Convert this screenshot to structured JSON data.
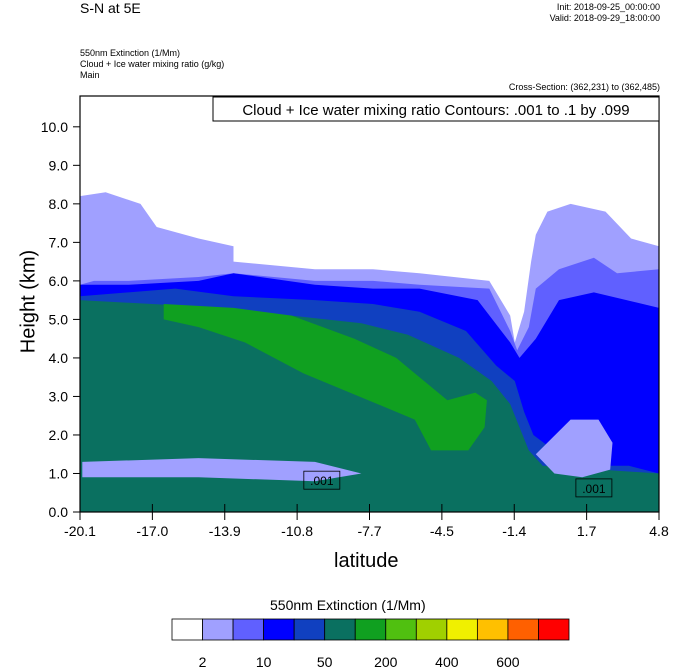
{
  "header": {
    "title": "S-N at 5E",
    "init": "Init: 2018-09-25_00:00:00",
    "valid": "Valid: 2018-09-29_18:00:00",
    "field1": "550nm Extinction   (1/Mm)",
    "field2": "Cloud + Ice water mixing ratio   (g/kg)",
    "field3": "Main",
    "cross_section": "Cross-Section: (362,231) to (362,485)"
  },
  "chart_data": {
    "type": "heatmap",
    "title": "Cloud + Ice water mixing ratio Contours: .001 to .1 by .099",
    "xlabel": "latitude",
    "ylabel": "Height (km)",
    "x_ticks": [
      "-20.1",
      "-17.0",
      "-13.9",
      "-10.8",
      "-7.7",
      "-4.5",
      "-1.4",
      "1.7",
      "4.8"
    ],
    "y_ticks": [
      "0.0",
      "1.0",
      "2.0",
      "3.0",
      "4.0",
      "5.0",
      "6.0",
      "7.0",
      "8.0",
      "9.0",
      "10.0"
    ],
    "xlim": [
      -20.1,
      4.8
    ],
    "ylim": [
      0,
      10.8
    ],
    "contour_labels": [
      {
        "text": ".001",
        "lat": -9.7,
        "height": 0.8
      },
      {
        "text": ".001",
        "lat": 2.0,
        "height": 0.6
      }
    ],
    "colorbar": {
      "title": "550nm Extinction  (1/Mm)",
      "colors": [
        "#ffffff",
        "#a0a0ff",
        "#6060ff",
        "#0000ff",
        "#1040c0",
        "#0a7060",
        "#10a020",
        "#50c010",
        "#a0d000",
        "#f0f000",
        "#ffc000",
        "#ff6000",
        "#ff0000"
      ],
      "tick_labels": [
        "2",
        "10",
        "50",
        "200",
        "400",
        "600"
      ]
    },
    "regions": [
      {
        "level": 1,
        "points": [
          [
            -20.1,
            5.6
          ],
          [
            -20.1,
            8.2
          ],
          [
            -19,
            8.3
          ],
          [
            -17.5,
            8.0
          ],
          [
            -16.8,
            7.4
          ],
          [
            -15,
            7.1
          ],
          [
            -13.5,
            6.9
          ],
          [
            -13.5,
            6.5
          ],
          [
            -10,
            6.3
          ],
          [
            -7.5,
            6.3
          ],
          [
            -5.5,
            6.2
          ],
          [
            -2.5,
            6.0
          ],
          [
            -1.6,
            5.1
          ],
          [
            -1.4,
            4.4
          ],
          [
            -1.0,
            5.2
          ],
          [
            -0.7,
            6.5
          ],
          [
            -0.5,
            7.2
          ],
          [
            0.0,
            7.8
          ],
          [
            1.0,
            8.0
          ],
          [
            2.5,
            7.8
          ],
          [
            3.6,
            7.1
          ],
          [
            4.8,
            6.9
          ],
          [
            4.8,
            0
          ],
          [
            -20.1,
            0
          ]
        ]
      },
      {
        "level": 2,
        "points": [
          [
            -20.1,
            5.9
          ],
          [
            -19.5,
            6.0
          ],
          [
            -18,
            6.0
          ],
          [
            -15,
            6.1
          ],
          [
            -13.5,
            6.2
          ],
          [
            -10,
            6.0
          ],
          [
            -7.5,
            6.0
          ],
          [
            -5.5,
            5.9
          ],
          [
            -2.5,
            5.8
          ],
          [
            -1.6,
            4.7
          ],
          [
            -1.3,
            4.2
          ],
          [
            -0.8,
            4.8
          ],
          [
            -0.5,
            5.8
          ],
          [
            0.5,
            6.3
          ],
          [
            2.0,
            6.6
          ],
          [
            3.0,
            6.2
          ],
          [
            4.8,
            6.3
          ],
          [
            4.8,
            0
          ],
          [
            -20.1,
            0
          ]
        ]
      },
      {
        "level": 3,
        "points": [
          [
            -20.1,
            5.9
          ],
          [
            -18,
            5.9
          ],
          [
            -15,
            6.0
          ],
          [
            -13.5,
            6.2
          ],
          [
            -10,
            5.9
          ],
          [
            -7.5,
            5.8
          ],
          [
            -5.5,
            5.8
          ],
          [
            -3,
            5.5
          ],
          [
            -1.6,
            4.4
          ],
          [
            -1.2,
            4.0
          ],
          [
            -0.5,
            4.5
          ],
          [
            0.5,
            5.5
          ],
          [
            2.0,
            5.7
          ],
          [
            4.8,
            5.3
          ],
          [
            4.8,
            0
          ],
          [
            -20.1,
            0
          ]
        ]
      },
      {
        "level": 4,
        "points": [
          [
            -20.1,
            5.6
          ],
          [
            -16,
            5.8
          ],
          [
            -13.5,
            5.6
          ],
          [
            -10,
            5.5
          ],
          [
            -7.5,
            5.4
          ],
          [
            -5.5,
            5.2
          ],
          [
            -3.5,
            4.7
          ],
          [
            -2.2,
            3.8
          ],
          [
            -1.4,
            3.4
          ],
          [
            -1.0,
            2.6
          ],
          [
            -0.6,
            2.0
          ],
          [
            0.5,
            1.5
          ],
          [
            2.0,
            1.2
          ],
          [
            3.5,
            1.2
          ],
          [
            4.8,
            1.0
          ],
          [
            4.8,
            0
          ],
          [
            -20.1,
            0
          ]
        ]
      },
      {
        "level": 5,
        "points": [
          [
            -20.1,
            5.5
          ],
          [
            -17,
            5.4
          ],
          [
            -14,
            5.3
          ],
          [
            -11,
            5.1
          ],
          [
            -8,
            4.9
          ],
          [
            -6,
            4.6
          ],
          [
            -3.8,
            4.0
          ],
          [
            -2.4,
            3.4
          ],
          [
            -1.6,
            2.8
          ],
          [
            -1.2,
            2.2
          ],
          [
            -0.8,
            1.6
          ],
          [
            -0.2,
            1.2
          ],
          [
            4.8,
            1.0
          ],
          [
            4.8,
            0
          ],
          [
            -20.1,
            0
          ]
        ]
      },
      {
        "level": 6,
        "points": [
          [
            -16.5,
            5.4
          ],
          [
            -13.5,
            5.3
          ],
          [
            -11,
            5.1
          ],
          [
            -8.3,
            4.5
          ],
          [
            -6.5,
            4.0
          ],
          [
            -5.5,
            3.5
          ],
          [
            -4.3,
            2.9
          ],
          [
            -3.1,
            3.1
          ],
          [
            -2.6,
            2.9
          ],
          [
            -2.7,
            2.2
          ],
          [
            -3.4,
            1.6
          ],
          [
            -5.0,
            1.6
          ],
          [
            -5.7,
            2.4
          ],
          [
            -7.3,
            2.8
          ],
          [
            -10.5,
            3.6
          ],
          [
            -13.0,
            4.4
          ],
          [
            -15.0,
            4.8
          ],
          [
            -16.5,
            5.0
          ]
        ]
      },
      {
        "level": 1,
        "points": [
          [
            -0.5,
            1.5
          ],
          [
            1.0,
            2.4
          ],
          [
            2.2,
            2.4
          ],
          [
            2.8,
            1.8
          ],
          [
            2.7,
            1.1
          ],
          [
            1.5,
            0.9
          ],
          [
            0.3,
            1.0
          ]
        ]
      },
      {
        "level": 1,
        "points": [
          [
            -20.0,
            1.3
          ],
          [
            -15,
            1.4
          ],
          [
            -10,
            1.3
          ],
          [
            -8,
            1.0
          ],
          [
            -10,
            0.8
          ],
          [
            -15,
            0.9
          ],
          [
            -20.0,
            0.9
          ]
        ]
      }
    ]
  }
}
